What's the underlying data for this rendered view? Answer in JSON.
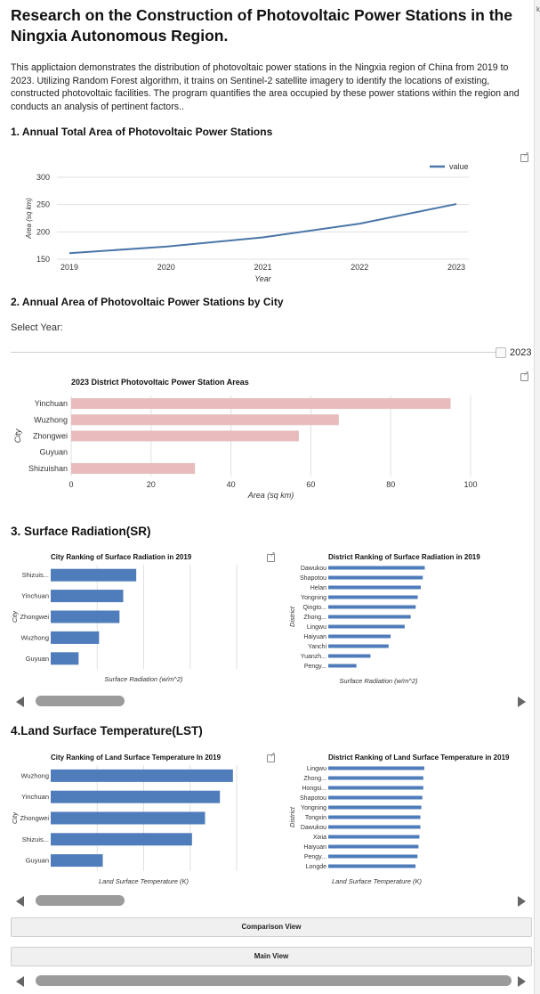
{
  "title": "Research on the Construction of Photovoltaic Power Stations in the Ningxia Autonomous Region.",
  "intro": "This applictaion demonstrates the distribution of photovoltaic power stations in the Ningxia region of China from 2019 to 2023. Utilizing Random Forest algorithm, it trains on Sentinel-2 satellite imagery to identify the locations of existing, constructed photovoltaic facilities. The program quantifies the area occupied by these power stations within the region and conducts an analysis of pertinent factors..",
  "sections": {
    "s1": "1. Annual Total Area of Photovoltaic Power Stations",
    "s2": "2. Annual Area of Photovoltaic Power Stations by City",
    "s3": "3. Surface Radiation(SR)",
    "s4": "4.Land Surface Temperature(LST)"
  },
  "select_year": {
    "label": "Select Year:",
    "value": "2023"
  },
  "buttons": {
    "comparison": "Comparison View",
    "main": "Main View"
  },
  "right_strip_text": "k",
  "colors": {
    "line": "#4a76a8",
    "bar_pink": "#e8bcbc",
    "bar_blue": "#4f7cba",
    "grid": "#e0e0e0"
  },
  "icons": [
    "open-external-icon",
    "scroll-left-arrow-icon",
    "scroll-right-arrow-icon"
  ],
  "scroll_positions": [
    0.0,
    0.0,
    0.0
  ],
  "chart_data": [
    {
      "type": "line",
      "x": [
        2019,
        2020,
        2021,
        2022,
        2023
      ],
      "series": [
        {
          "name": "value",
          "values": [
            161,
            173,
            190,
            215,
            251
          ]
        }
      ],
      "xlabel": "Year",
      "ylabel": "Area (sq km)",
      "xticks": [
        "2019",
        "2020",
        "2021",
        "2022",
        "2023"
      ],
      "yticks": [
        "150",
        "200",
        "250",
        "300"
      ],
      "ylim": [
        150,
        300
      ],
      "legend": "top-right",
      "grid": true
    },
    {
      "type": "bar",
      "title": "2023 District Photovoltaic Power Station Areas",
      "categories": [
        "Yinchuan",
        "Wuzhong",
        "Zhongwei",
        "Guyuan",
        "Shizuishan"
      ],
      "values": [
        95,
        67,
        57,
        0,
        31
      ],
      "xlabel": "Area (sq km)",
      "ylabel": "City",
      "xticks": [
        "0",
        "20",
        "40",
        "60",
        "80",
        "100"
      ],
      "xlim": [
        0,
        100
      ],
      "grid": true
    },
    {
      "type": "bar",
      "title": "City Ranking of Surface Radiation in 2019",
      "categories": [
        "Shizuis...",
        "Yinchuan",
        "Zhongwei",
        "Wuzhong",
        "Guyuan"
      ],
      "values": [
        0.46,
        0.39,
        0.37,
        0.26,
        0.15
      ],
      "xlabel": "Surface Radiation (w/m^2)",
      "ylabel": "City"
    },
    {
      "type": "bar",
      "title": "District Ranking of Surface Radiation in 2019",
      "categories": [
        "Dawukou",
        "Shapotou",
        "Helan",
        "Yongning",
        "Qingto...",
        "Zhong...",
        "Lingwu",
        "Haiyuan",
        "Yanchi",
        "Yuanzh...",
        "Pengy..."
      ],
      "values": [
        0.96,
        0.94,
        0.92,
        0.89,
        0.87,
        0.82,
        0.76,
        0.62,
        0.6,
        0.42,
        0.28
      ],
      "xlabel": "Surface Radiation (w/m^2)",
      "ylabel": "District"
    },
    {
      "type": "bar",
      "title": "City Ranking of Land Surface Temperature In 2019",
      "categories": [
        "Wuzhong",
        "Yinchuan",
        "Zhongwei",
        "Shizuis...",
        "Guyuan"
      ],
      "values": [
        0.98,
        0.91,
        0.83,
        0.76,
        0.28
      ],
      "xlabel": "Land Surface Temperature (K)",
      "ylabel": "City"
    },
    {
      "type": "bar",
      "title": "District Ranking of Land Surface Temperature in 2019",
      "categories": [
        "Lingwu",
        "Zhong...",
        "Hongsi...",
        "Shapotou",
        "Yongning",
        "Tongxin",
        "Dawukou",
        "Xixia",
        "Haiyuan",
        "Pengy...",
        "Longde"
      ],
      "values": [
        0.99,
        0.98,
        0.98,
        0.97,
        0.96,
        0.95,
        0.95,
        0.94,
        0.93,
        0.92,
        0.9
      ],
      "xlabel": "Land Surface Temperature (K)",
      "ylabel": "District"
    }
  ]
}
